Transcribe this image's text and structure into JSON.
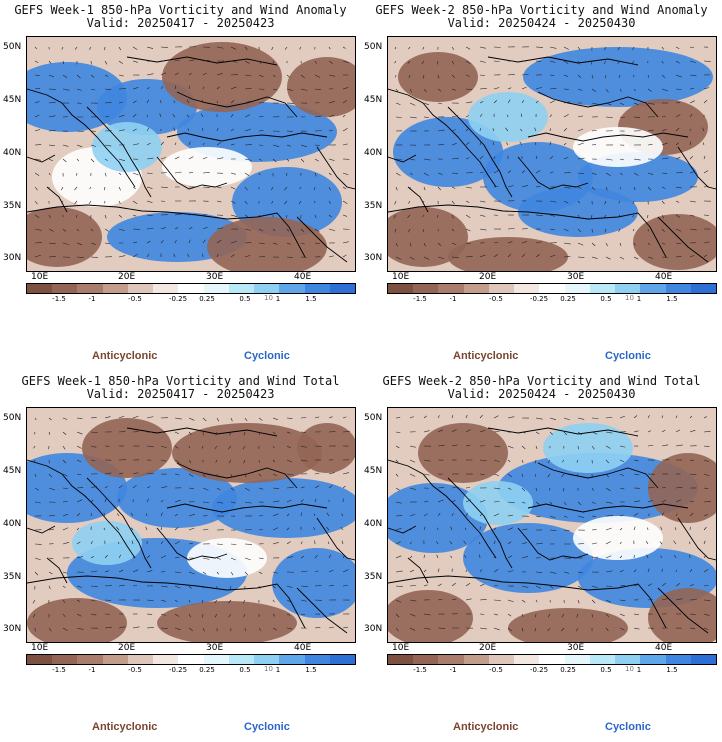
{
  "colors": {
    "anticyclonic": "#7a4530",
    "cyclonic": "#2a66c9",
    "colorbar": [
      "#7d5142",
      "#946555",
      "#a87d6c",
      "#c39d8c",
      "#dec6bb",
      "#f2e7e1",
      "#ffffff",
      "#e6f7fb",
      "#b9e9f6",
      "#8fd0f2",
      "#5fa7e8",
      "#3f86e0",
      "#2e6fd6"
    ]
  },
  "colorbar_ticks": [
    "-1.5",
    "-1",
    "-0.5",
    "-0.25",
    "0.25",
    "0.5",
    "1",
    "1.5"
  ],
  "colorbar_unit": "10",
  "axes": {
    "x": [
      "10E",
      "20E",
      "30E",
      "40E"
    ],
    "y": [
      "50N",
      "45N",
      "40N",
      "35N",
      "30N"
    ]
  },
  "legend": {
    "anticyclonic": "Anticyclonic",
    "cyclonic": "Cyclonic"
  },
  "panels": [
    {
      "title": "GEFS Week-1 850-hPa Vorticity and Wind Anomaly",
      "valid": "Valid: 20250417 - 20250423"
    },
    {
      "title": "GEFS Week-2 850-hPa Vorticity and Wind Anomaly",
      "valid": "Valid: 20250424 - 20250430"
    },
    {
      "title": "GEFS Week-1 850-hPa Vorticity and Wind Total",
      "valid": "Valid: 20250417 - 20250423"
    },
    {
      "title": "GEFS Week-2 850-hPa Vorticity and Wind Total",
      "valid": "Valid: 20250424 - 20250430"
    }
  ]
}
